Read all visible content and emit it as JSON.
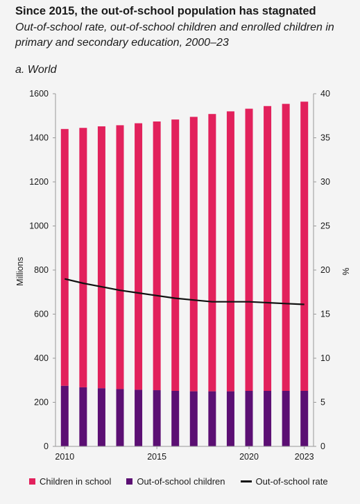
{
  "title": "Since 2015, the out-of-school population has stagnated",
  "subtitle": "Out-of-school rate, out-of-school children and enrolled children in primary and secondary education, 2000–23",
  "panel_label": "a. World",
  "colors": {
    "in_school": "#e2215c",
    "out_of_school": "#5b0f73",
    "rate": "#111111"
  },
  "chart_data": {
    "type": "bar",
    "x": [
      2010,
      2011,
      2012,
      2013,
      2014,
      2015,
      2016,
      2017,
      2018,
      2019,
      2020,
      2021,
      2022,
      2023
    ],
    "xticks": [
      "2010",
      "2015",
      "2020",
      "2023"
    ],
    "ylabel": "Millions",
    "ylim": [
      0,
      1600
    ],
    "yticks": [
      "0",
      "200",
      "400",
      "600",
      "800",
      "1000",
      "1200",
      "1400",
      "1600"
    ],
    "y2label": "%",
    "y2lim": [
      0,
      40
    ],
    "y2ticks": [
      "0",
      "5",
      "10",
      "15",
      "20",
      "25",
      "30",
      "35",
      "40"
    ],
    "stacked": true,
    "series": [
      {
        "name": "Out-of-school children",
        "type": "bar",
        "axis": "left",
        "values": [
          275,
          268,
          264,
          260,
          257,
          255,
          252,
          250,
          250,
          250,
          252,
          252,
          252,
          252
        ]
      },
      {
        "name": "Children in school",
        "type": "bar",
        "axis": "left",
        "values": [
          1165,
          1177,
          1188,
          1197,
          1209,
          1219,
          1231,
          1245,
          1258,
          1270,
          1280,
          1292,
          1302,
          1312
        ]
      },
      {
        "name": "Out-of-school rate",
        "type": "line",
        "axis": "right",
        "values": [
          19.0,
          18.5,
          18.1,
          17.7,
          17.4,
          17.1,
          16.8,
          16.6,
          16.4,
          16.4,
          16.4,
          16.3,
          16.2,
          16.1
        ]
      }
    ],
    "legend": {
      "position": "bottom",
      "items": [
        "Children in school",
        "Out-of-school children",
        "Out-of-school rate"
      ]
    }
  }
}
